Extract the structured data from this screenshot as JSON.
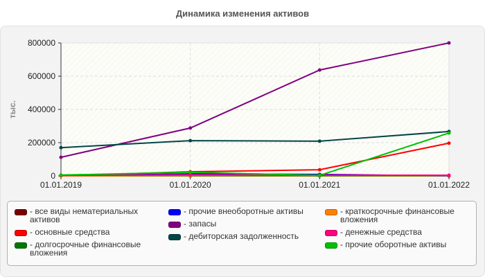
{
  "title": "Динамика изменения активов",
  "chart_data": {
    "type": "line",
    "title": "Динамика изменения активов",
    "xlabel": "",
    "ylabel": "тыс.",
    "x": [
      "01.01.2019",
      "01.01.2020",
      "01.01.2021",
      "01.01.2022"
    ],
    "yticks": [
      "0",
      "200000",
      "400000",
      "600000",
      "800000"
    ],
    "ylim": [
      0,
      800000
    ],
    "grid": true,
    "legend_position": "bottom",
    "series": [
      {
        "name": "все виды нематериальных активов",
        "color": "#7a0000",
        "values": [
          0,
          0,
          0,
          0
        ]
      },
      {
        "name": "основные средства",
        "color": "#ff0000",
        "values": [
          0,
          25000,
          37000,
          197000
        ]
      },
      {
        "name": "долгосрочные финансовые вложения",
        "color": "#007700",
        "values": [
          0,
          0,
          0,
          0
        ]
      },
      {
        "name": "прочие внеоборотные активы",
        "color": "#0000ff",
        "values": [
          1000,
          12000,
          9000,
          0
        ]
      },
      {
        "name": "запасы",
        "color": "#800080",
        "values": [
          112000,
          288000,
          637000,
          800000
        ]
      },
      {
        "name": "дебиторская задолженность",
        "color": "#004646",
        "values": [
          170000,
          212000,
          209000,
          267000
        ]
      },
      {
        "name": "краткосрочные финансовые вложения",
        "color": "#ff8000",
        "values": [
          0,
          2000,
          2000,
          2000
        ]
      },
      {
        "name": "денежные средства",
        "color": "#ff0080",
        "values": [
          3000,
          6000,
          4000,
          4000
        ]
      },
      {
        "name": "прочие оборотные активы",
        "color": "#00c000",
        "values": [
          5000,
          22000,
          3000,
          258000
        ]
      }
    ]
  },
  "legend": {
    "columns": [
      [
        {
          "label": "- все виды нематериальных активов",
          "color": "#7a0000"
        },
        {
          "label": "- основные средства",
          "color": "#ff0000"
        },
        {
          "label": "- долгосрочные финансовые вложения",
          "color": "#007700"
        }
      ],
      [
        {
          "label": "- прочие внеоборотные активы",
          "color": "#0000ff"
        },
        {
          "label": "- запасы",
          "color": "#800080"
        },
        {
          "label": "- дебиторская задолженность",
          "color": "#004646"
        }
      ],
      [
        {
          "label": "- краткосрочные финансовые вложения",
          "color": "#ff8000"
        },
        {
          "label": "- денежные средства",
          "color": "#ff0080"
        },
        {
          "label": "- прочие оборотные активы",
          "color": "#00c000"
        }
      ]
    ]
  }
}
